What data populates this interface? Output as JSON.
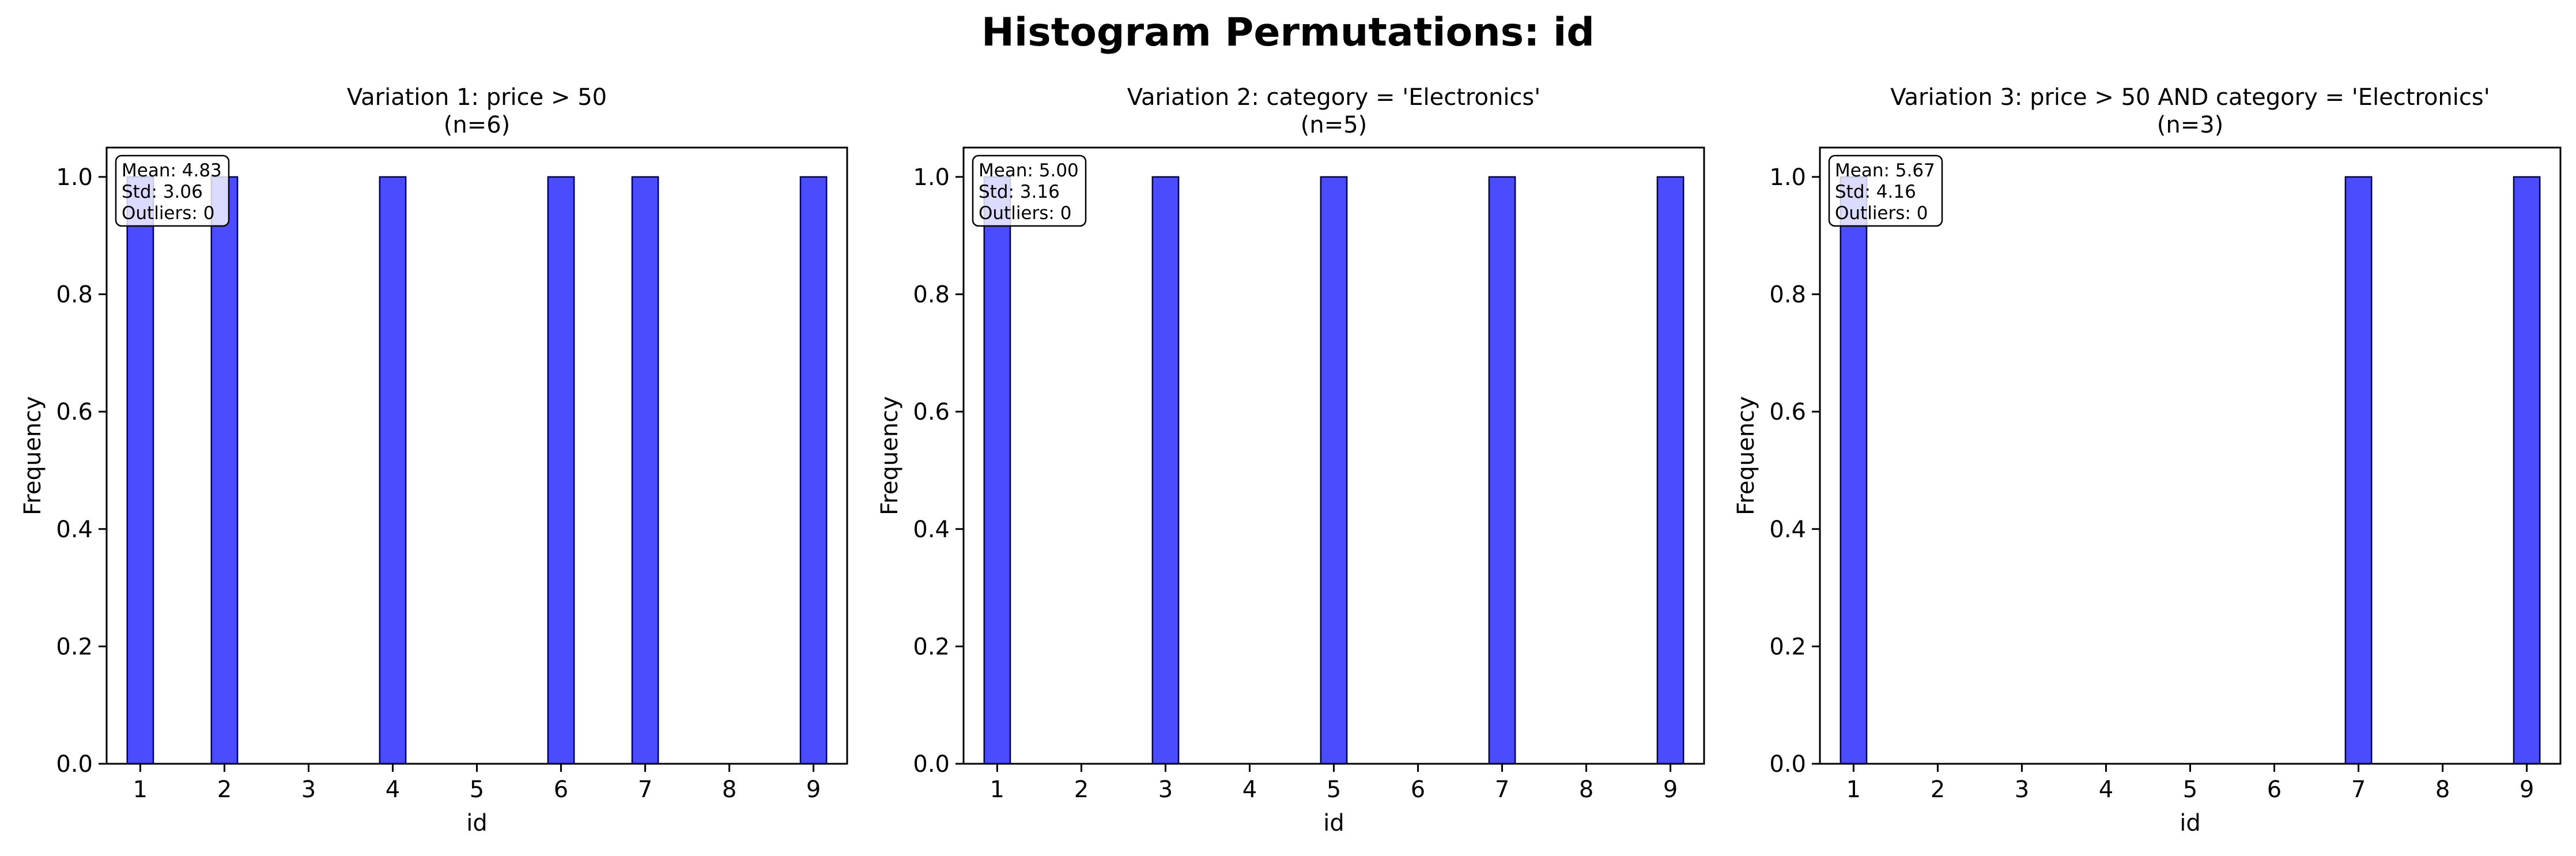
{
  "suptitle": "Histogram Permutations: id",
  "chart_data": [
    {
      "type": "bar",
      "title": "Variation 1: price > 50",
      "subtitle": "(n=6)",
      "xlabel": "id",
      "ylabel": "Frequency",
      "xticks": [
        1,
        2,
        3,
        4,
        5,
        6,
        7,
        8,
        9
      ],
      "yticks": [
        "0.0",
        "0.2",
        "0.4",
        "0.6",
        "0.8",
        "1.0"
      ],
      "xlim": [
        0.6,
        9.4
      ],
      "ylim": [
        0,
        1.05
      ],
      "bars": [
        {
          "x": 1,
          "value": 1
        },
        {
          "x": 2,
          "value": 1
        },
        {
          "x": 4,
          "value": 1
        },
        {
          "x": 6,
          "value": 1
        },
        {
          "x": 7,
          "value": 1
        },
        {
          "x": 9,
          "value": 1
        }
      ],
      "stats": [
        "Mean: 4.83",
        "Std: 3.06",
        "Outliers: 0"
      ],
      "bar_color": "#4b4bff",
      "grid": false
    },
    {
      "type": "bar",
      "title": "Variation 2: category = 'Electronics'",
      "subtitle": "(n=5)",
      "xlabel": "id",
      "ylabel": "Frequency",
      "xticks": [
        1,
        2,
        3,
        4,
        5,
        6,
        7,
        8,
        9
      ],
      "yticks": [
        "0.0",
        "0.2",
        "0.4",
        "0.6",
        "0.8",
        "1.0"
      ],
      "xlim": [
        0.6,
        9.4
      ],
      "ylim": [
        0,
        1.05
      ],
      "bars": [
        {
          "x": 1,
          "value": 1
        },
        {
          "x": 3,
          "value": 1
        },
        {
          "x": 5,
          "value": 1
        },
        {
          "x": 7,
          "value": 1
        },
        {
          "x": 9,
          "value": 1
        }
      ],
      "stats": [
        "Mean: 5.00",
        "Std: 3.16",
        "Outliers: 0"
      ],
      "bar_color": "#4b4bff",
      "grid": false
    },
    {
      "type": "bar",
      "title": "Variation 3: price > 50 AND category = 'Electronics'",
      "subtitle": "(n=3)",
      "xlabel": "id",
      "ylabel": "Frequency",
      "xticks": [
        1,
        2,
        3,
        4,
        5,
        6,
        7,
        8,
        9
      ],
      "yticks": [
        "0.0",
        "0.2",
        "0.4",
        "0.6",
        "0.8",
        "1.0"
      ],
      "xlim": [
        0.6,
        9.4
      ],
      "ylim": [
        0,
        1.05
      ],
      "bars": [
        {
          "x": 1,
          "value": 1
        },
        {
          "x": 7,
          "value": 1
        },
        {
          "x": 9,
          "value": 1
        }
      ],
      "stats": [
        "Mean: 5.67",
        "Std: 4.16",
        "Outliers: 0"
      ],
      "bar_color": "#4b4bff",
      "grid": false
    }
  ]
}
